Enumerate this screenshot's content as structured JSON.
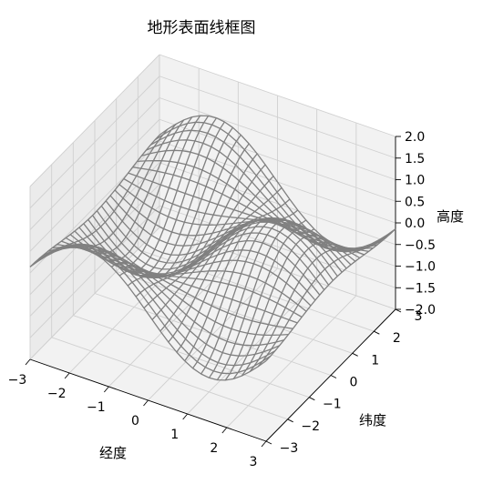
{
  "chart_data": {
    "type": "surface-wireframe",
    "title": "地形表面线框图",
    "xlabel": "经度",
    "ylabel": "纬度",
    "zlabel": "高度",
    "xlim": [
      -3,
      3
    ],
    "ylim": [
      -3,
      3
    ],
    "zlim": [
      -2,
      2
    ],
    "x_ticks": [
      "−3",
      "−2",
      "−1",
      "0",
      "1",
      "2",
      "3"
    ],
    "y_ticks": [
      "−3",
      "−2",
      "−1",
      "0",
      "1",
      "2",
      "3"
    ],
    "z_ticks": [
      "−2.0",
      "−1.5",
      "−1.0",
      "−0.5",
      "0.0",
      "0.5",
      "1.0",
      "1.5",
      "2.0"
    ],
    "function": "z = sin(x) * cos(y)",
    "grid_resolution": 30,
    "grid": true,
    "colors": {
      "wire": "#808080",
      "pane": "#f2f2f2",
      "pane_side": "#ebebeb",
      "gridline": "#d0d0d0"
    }
  }
}
